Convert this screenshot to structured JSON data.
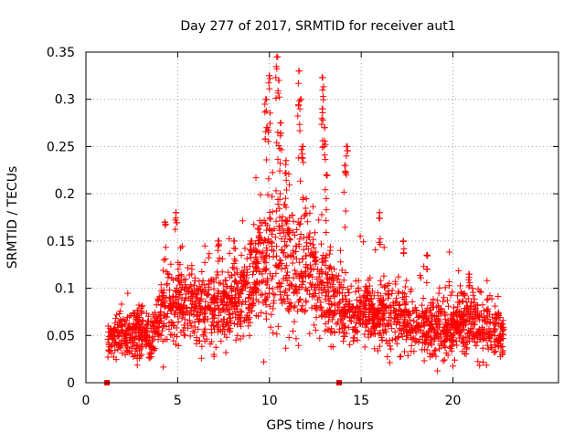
{
  "chart_data": {
    "type": "scatter",
    "title": "Day 277 of 2017, SRMTID for receiver aut1",
    "xlabel": "GPS time / hours",
    "ylabel": "SRMTID / TECUs",
    "xlim": [
      0,
      25.75
    ],
    "ylim": [
      0,
      0.35
    ],
    "xticks": [
      0,
      5,
      10,
      15,
      20
    ],
    "yticks": [
      0,
      0.05,
      0.1,
      0.15,
      0.2,
      0.25,
      0.3,
      0.35
    ],
    "xtick_labels": [
      "0",
      "5",
      "10",
      "15",
      "20"
    ],
    "ytick_labels": [
      "0",
      "0.05",
      "0.1",
      "0.15",
      "0.2",
      "0.25",
      "0.3",
      "0.35"
    ],
    "grid": true,
    "marker": "plus",
    "color": "#ff0000",
    "zero_markers": [
      {
        "x": 1.15,
        "y": 0
      },
      {
        "x": 13.8,
        "y": 0
      }
    ],
    "density_profile": [
      {
        "x": 1.2,
        "y": 0.045,
        "spread": 0.012
      },
      {
        "x": 2.0,
        "y": 0.052,
        "spread": 0.015
      },
      {
        "x": 3.0,
        "y": 0.05,
        "spread": 0.015
      },
      {
        "x": 3.6,
        "y": 0.045,
        "spread": 0.012
      },
      {
        "x": 4.2,
        "y": 0.075,
        "spread": 0.025
      },
      {
        "x": 5.0,
        "y": 0.085,
        "spread": 0.025
      },
      {
        "x": 6.0,
        "y": 0.08,
        "spread": 0.025
      },
      {
        "x": 7.0,
        "y": 0.075,
        "spread": 0.025
      },
      {
        "x": 8.0,
        "y": 0.085,
        "spread": 0.025
      },
      {
        "x": 9.0,
        "y": 0.1,
        "spread": 0.03
      },
      {
        "x": 10.0,
        "y": 0.13,
        "spread": 0.045
      },
      {
        "x": 11.0,
        "y": 0.12,
        "spread": 0.045
      },
      {
        "x": 12.0,
        "y": 0.12,
        "spread": 0.045
      },
      {
        "x": 13.0,
        "y": 0.1,
        "spread": 0.035
      },
      {
        "x": 14.0,
        "y": 0.075,
        "spread": 0.02
      },
      {
        "x": 15.0,
        "y": 0.075,
        "spread": 0.02
      },
      {
        "x": 16.0,
        "y": 0.07,
        "spread": 0.02
      },
      {
        "x": 17.0,
        "y": 0.075,
        "spread": 0.025
      },
      {
        "x": 18.0,
        "y": 0.06,
        "spread": 0.02
      },
      {
        "x": 19.0,
        "y": 0.058,
        "spread": 0.02
      },
      {
        "x": 20.0,
        "y": 0.06,
        "spread": 0.02
      },
      {
        "x": 21.0,
        "y": 0.065,
        "spread": 0.02
      },
      {
        "x": 22.0,
        "y": 0.055,
        "spread": 0.02
      },
      {
        "x": 22.8,
        "y": 0.05,
        "spread": 0.015
      }
    ],
    "peaks": [
      {
        "x": 4.3,
        "y": 0.17
      },
      {
        "x": 4.9,
        "y": 0.18
      },
      {
        "x": 7.2,
        "y": 0.15
      },
      {
        "x": 8.1,
        "y": 0.15
      },
      {
        "x": 9.0,
        "y": 0.15
      },
      {
        "x": 9.8,
        "y": 0.3
      },
      {
        "x": 9.9,
        "y": 0.27
      },
      {
        "x": 10.0,
        "y": 0.325
      },
      {
        "x": 10.4,
        "y": 0.345
      },
      {
        "x": 10.5,
        "y": 0.32
      },
      {
        "x": 10.6,
        "y": 0.275
      },
      {
        "x": 10.9,
        "y": 0.235
      },
      {
        "x": 11.6,
        "y": 0.33
      },
      {
        "x": 11.7,
        "y": 0.3
      },
      {
        "x": 11.8,
        "y": 0.25
      },
      {
        "x": 12.9,
        "y": 0.323
      },
      {
        "x": 12.9,
        "y": 0.29
      },
      {
        "x": 13.0,
        "y": 0.27
      },
      {
        "x": 13.1,
        "y": 0.22
      },
      {
        "x": 14.2,
        "y": 0.25
      },
      {
        "x": 14.1,
        "y": 0.23
      },
      {
        "x": 16.0,
        "y": 0.18
      },
      {
        "x": 17.3,
        "y": 0.15
      },
      {
        "x": 18.6,
        "y": 0.135
      },
      {
        "x": 20.9,
        "y": 0.115
      }
    ]
  }
}
